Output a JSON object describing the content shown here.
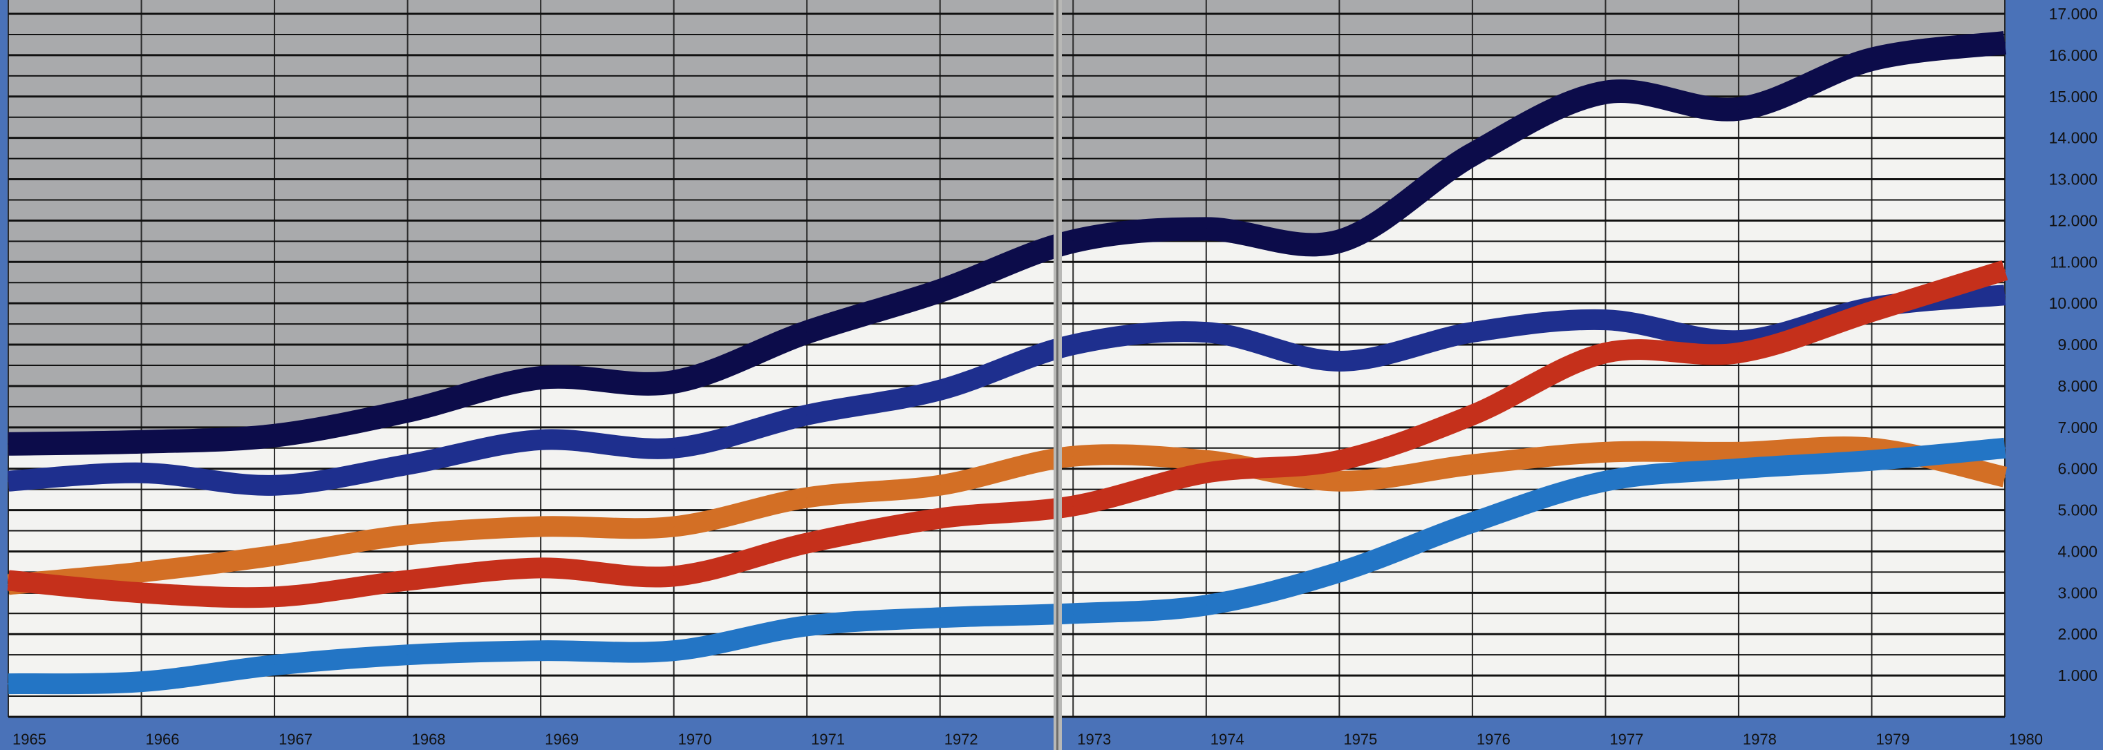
{
  "chart_data": {
    "type": "line",
    "title": "",
    "xlabel": "",
    "ylabel": "",
    "x_tick_labels": [
      "1965",
      "1966",
      "1967",
      "1968",
      "1969",
      "1970",
      "1971",
      "1972",
      "1973",
      "1974",
      "1975",
      "1976",
      "1977",
      "1978",
      "1979",
      "1980"
    ],
    "y_tick_labels": [
      "1.000",
      "2.000",
      "3.000",
      "4.000",
      "5.000",
      "6.000",
      "7.000",
      "8.000",
      "9.000",
      "10.000",
      "11.000",
      "12.000",
      "13.000",
      "14.000",
      "15.000",
      "16.000",
      "17.000"
    ],
    "xlim": [
      1965,
      1980
    ],
    "ylim": [
      0,
      17000
    ],
    "grid": true,
    "legend": "none",
    "shaded_area_above": "series_1",
    "colors": {
      "shade": "#a9aaac",
      "plot_bg": "#f3f3f1",
      "grid": "#111111",
      "page_bg": "#4a72b8"
    },
    "x": [
      1965,
      1966,
      1967,
      1968,
      1969,
      1970,
      1971,
      1972,
      1973,
      1974,
      1975,
      1976,
      1977,
      1978,
      1979,
      1980
    ],
    "series": [
      {
        "color": "#0c0c4a",
        "width": 34,
        "values": [
          6600,
          6650,
          6800,
          7400,
          8200,
          8100,
          9300,
          10300,
          11500,
          11800,
          11500,
          13600,
          15100,
          14700,
          15900,
          16300
        ]
      },
      {
        "color": "#1e2f8e",
        "width": 30,
        "values": [
          5700,
          5900,
          5600,
          6100,
          6700,
          6500,
          7300,
          7900,
          9000,
          9300,
          8600,
          9300,
          9600,
          9100,
          9900,
          10200
        ]
      },
      {
        "color": "#d36f25",
        "width": 30,
        "values": [
          3200,
          3500,
          3900,
          4400,
          4600,
          4600,
          5300,
          5600,
          6300,
          6200,
          5700,
          6100,
          6400,
          6400,
          6500,
          5800
        ]
      },
      {
        "color": "#c5301b",
        "width": 30,
        "values": [
          3300,
          3000,
          2900,
          3300,
          3600,
          3400,
          4200,
          4800,
          5100,
          5900,
          6200,
          7300,
          8800,
          8800,
          9800,
          10800
        ]
      },
      {
        "color": "#2375c5",
        "width": 30,
        "values": [
          800,
          850,
          1250,
          1500,
          1600,
          1600,
          2200,
          2400,
          2500,
          2700,
          3500,
          4700,
          5700,
          6000,
          6200,
          6500
        ]
      }
    ]
  }
}
